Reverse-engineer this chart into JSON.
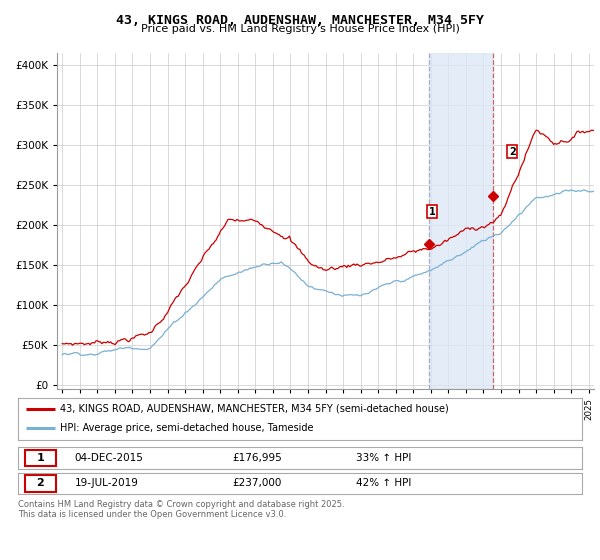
{
  "title": "43, KINGS ROAD, AUDENSHAW, MANCHESTER, M34 5FY",
  "subtitle": "Price paid vs. HM Land Registry's House Price Index (HPI)",
  "ylabel_values": [
    0,
    50000,
    100000,
    150000,
    200000,
    250000,
    300000,
    350000,
    400000
  ],
  "ylim": [
    -5000,
    415000
  ],
  "xlim_start": 1994.7,
  "xlim_end": 2025.3,
  "red_line_color": "#cc0000",
  "blue_line_color": "#7ab0d4",
  "vline1_color": "#aaaacc",
  "vline2_color": "#cc6666",
  "span_color": "#dce8f5",
  "marker1_x": 2015.92,
  "marker1_y": 176995,
  "marker2_x": 2019.54,
  "marker2_y": 237000,
  "legend_label_red": "43, KINGS ROAD, AUDENSHAW, MANCHESTER, M34 5FY (semi-detached house)",
  "legend_label_blue": "HPI: Average price, semi-detached house, Tameside",
  "annotation1_label": "1",
  "annotation2_label": "2",
  "table_row1": [
    "1",
    "04-DEC-2015",
    "£176,995",
    "33% ↑ HPI"
  ],
  "table_row2": [
    "2",
    "19-JUL-2019",
    "£237,000",
    "42% ↑ HPI"
  ],
  "footnote": "Contains HM Land Registry data © Crown copyright and database right 2025.\nThis data is licensed under the Open Government Licence v3.0.",
  "background_color": "#ffffff",
  "grid_color": "#cccccc"
}
